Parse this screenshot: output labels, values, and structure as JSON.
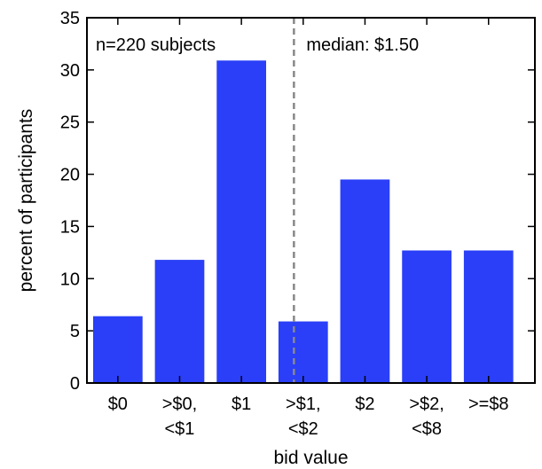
{
  "chart_data": {
    "type": "bar",
    "categories": [
      [
        "$0"
      ],
      [
        ">$0,",
        "<$1"
      ],
      [
        "$1"
      ],
      [
        ">$1,",
        "<$2"
      ],
      [
        "$2"
      ],
      [
        ">$2,",
        "<$8"
      ],
      [
        ">=$8"
      ]
    ],
    "values": [
      6.4,
      11.8,
      30.9,
      5.9,
      19.5,
      12.7,
      12.7
    ],
    "xlabel": "bid value",
    "ylabel": "percent of participants",
    "ylim": [
      0,
      35
    ],
    "yticks": [
      0,
      5,
      10,
      15,
      20,
      25,
      30,
      35
    ],
    "median_marker": {
      "x": 1.5,
      "style": "dashed"
    },
    "annotations": [
      "n=220 subjects",
      "median: $1.50"
    ],
    "grid": false,
    "legend": "none",
    "colors": {
      "bar": "#2a3ff7",
      "median_line": "#888888",
      "axis": "#000000"
    }
  }
}
